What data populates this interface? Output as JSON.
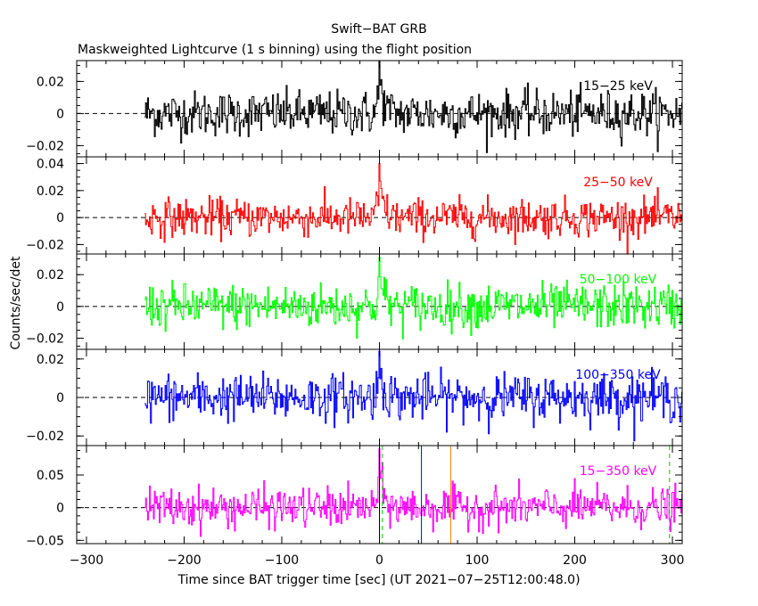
{
  "figure": {
    "title": "Swift−BAT GRB",
    "subtitle": "Maskweighted Lightcurve (1 s binning) using the flight position",
    "xlabel": "Time since BAT trigger time [sec] (UT 2021−07−25T12:00:48.0)",
    "ylabel": "Counts/sec/det"
  },
  "chart_data": {
    "type": "line",
    "x_range": [
      -310,
      310
    ],
    "x_ticks": [
      -300,
      -200,
      -100,
      0,
      100,
      200,
      300
    ],
    "x_tick_labels": [
      "−300",
      "−200",
      "−100",
      "0",
      "100",
      "200",
      "300"
    ],
    "data_x_start": -240,
    "data_x_end": 310,
    "trigger_peak_x": 0,
    "panels": [
      {
        "name": "15−25 keV",
        "color": "#000000",
        "ylim": [
          -0.027,
          0.033
        ],
        "y_ticks": [
          -0.02,
          0,
          0.02
        ],
        "y_tick_labels": [
          "−0.02",
          "0",
          "0.02"
        ],
        "noise_sigma": 0.007,
        "peak_value": 0.033
      },
      {
        "name": "25−50 keV",
        "color": "#ff0000",
        "ylim": [
          -0.027,
          0.045
        ],
        "y_ticks": [
          -0.02,
          0,
          0.02,
          0.04
        ],
        "y_tick_labels": [
          "−0.02",
          "0",
          "0.02",
          "0.04"
        ],
        "noise_sigma": 0.007,
        "peak_value": 0.04
      },
      {
        "name": "50−100 keV",
        "color": "#00ff00",
        "ylim": [
          -0.027,
          0.033
        ],
        "y_ticks": [
          -0.02,
          0,
          0.02
        ],
        "y_tick_labels": [
          "−0.02",
          "0",
          "0.02"
        ],
        "noise_sigma": 0.007,
        "peak_value": 0.031
      },
      {
        "name": "100−350 keV",
        "color": "#0000ff",
        "ylim": [
          -0.025,
          0.025
        ],
        "y_ticks": [
          -0.02,
          0,
          0.02
        ],
        "y_tick_labels": [
          "−0.02",
          "0",
          "0.02"
        ],
        "noise_sigma": 0.006,
        "peak_value": 0.024
      },
      {
        "name": "15−350 keV",
        "color": "#ff00ff",
        "ylim": [
          -0.055,
          0.095
        ],
        "y_ticks": [
          -0.05,
          0,
          0.05
        ],
        "y_tick_labels": [
          "−0.05",
          "0",
          "0.05"
        ],
        "noise_sigma": 0.015,
        "peak_value": 0.09
      }
    ],
    "markers": [
      {
        "x": 0,
        "style": "solid",
        "color": "#000000",
        "panel": 4
      },
      {
        "x": 3,
        "style": "dashed",
        "color": "#00cc00",
        "panel": 4
      },
      {
        "x": 43,
        "style": "solid",
        "color": "#0000ff",
        "panel": 4
      },
      {
        "x": 73,
        "style": "solid",
        "color": "#ff8000",
        "panel": 4
      },
      {
        "x": 297,
        "style": "dashed",
        "color": "#00cc00",
        "panel": 4
      }
    ]
  }
}
